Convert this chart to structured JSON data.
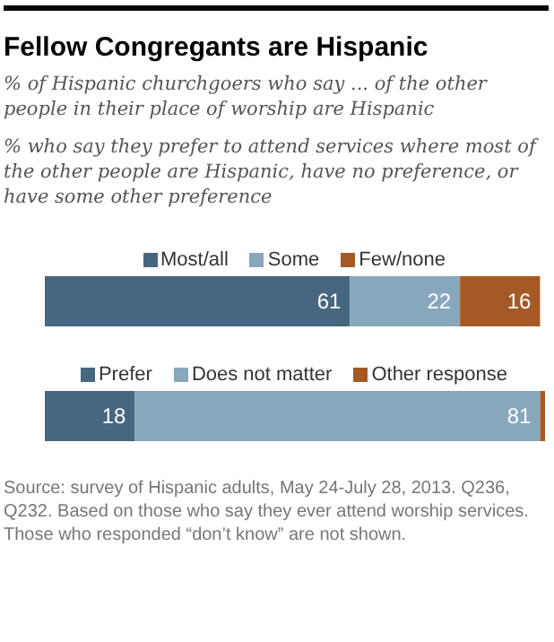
{
  "chart_data": [
    {
      "type": "bar",
      "orientation": "horizontal",
      "stacked": true,
      "title": "Fellow Congregants are Hispanic",
      "subtitle": "% of Hispanic churchgoers who say ... of the other people in their place of worship are Hispanic\n% who say they prefer to attend services where most of the other people are Hispanic, have no preference, or have some other preference",
      "categories": [
        null
      ],
      "xlim": [
        0,
        100
      ],
      "legend": "top",
      "data_labels": true,
      "series": [
        {
          "name": "Most/all",
          "color": "#46677f",
          "values": [
            61
          ]
        },
        {
          "name": "Some",
          "color": "#87a7bc",
          "values": [
            22
          ]
        },
        {
          "name": "Few/none",
          "color": "#a55a26",
          "values": [
            16
          ]
        }
      ]
    },
    {
      "type": "bar",
      "orientation": "horizontal",
      "stacked": true,
      "categories": [
        null
      ],
      "xlim": [
        0,
        100
      ],
      "legend": "top",
      "series": [
        {
          "name": "Prefer",
          "color": "#46677f",
          "values": [
            18
          ],
          "value_labels": [
            "18"
          ]
        },
        {
          "name": "Does not matter",
          "color": "#87a7bc",
          "values": [
            81
          ],
          "value_labels": [
            "81"
          ]
        },
        {
          "name": "Other response",
          "color": "#a55a26",
          "values": [
            1
          ],
          "value_labels": [
            null
          ]
        }
      ],
      "annotations": [
        "Source: survey of Hispanic adults, May 24-July 28, 2013. Q236, Q232.  Based on those who say they ever attend worship services. Those who responded “don’t know” are not shown."
      ]
    }
  ]
}
